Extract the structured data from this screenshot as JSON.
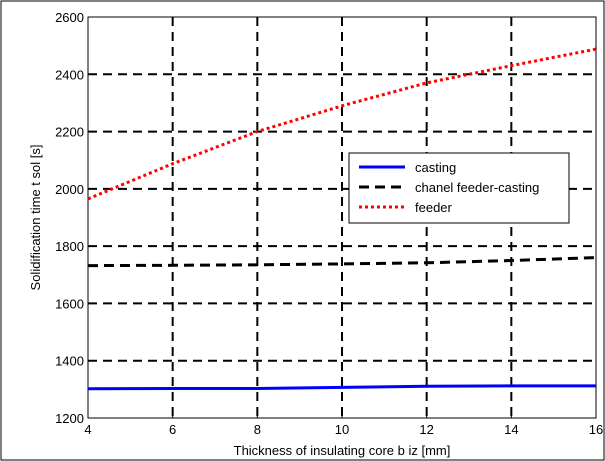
{
  "chart_data": {
    "type": "line",
    "xlabel": "Thickness of insulating core b iz [mm]",
    "ylabel": "Solidification time t sol [s]",
    "xlim": [
      4,
      16
    ],
    "ylim": [
      1200,
      2600
    ],
    "xticks": [
      4,
      6,
      8,
      10,
      12,
      14,
      16
    ],
    "yticks": [
      1200,
      1400,
      1600,
      1800,
      2000,
      2200,
      2400,
      2600
    ],
    "grid": true,
    "legend_position": "right-middle",
    "series": [
      {
        "name": "casting",
        "color": "#0000ff",
        "style": "solid",
        "x": [
          4,
          6,
          8,
          10,
          12,
          14,
          16
        ],
        "y": [
          1302,
          1303,
          1303,
          1307,
          1311,
          1312,
          1312
        ]
      },
      {
        "name": "chanel feeder-casting",
        "color": "#000000",
        "style": "dashed",
        "x": [
          4,
          6,
          8,
          10,
          12,
          14,
          16
        ],
        "y": [
          1732,
          1733,
          1735,
          1738,
          1742,
          1750,
          1760
        ]
      },
      {
        "name": "feeder",
        "color": "#ff0000",
        "style": "dotted",
        "x": [
          4,
          6,
          8,
          10,
          12,
          14,
          16
        ],
        "y": [
          1965,
          2088,
          2200,
          2290,
          2370,
          2430,
          2488
        ]
      }
    ]
  }
}
